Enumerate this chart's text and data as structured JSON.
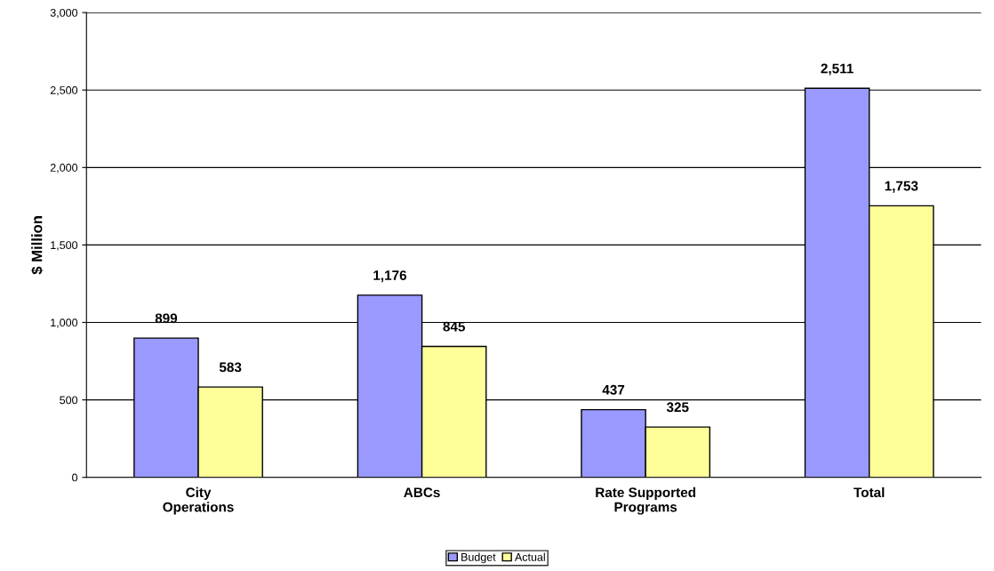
{
  "chart_data": {
    "type": "bar",
    "ylabel": "$ Million",
    "categories": [
      "City\nOperations",
      "ABCs",
      "Rate Supported\nPrograms",
      "Total"
    ],
    "series": [
      {
        "name": "Budget",
        "color": "#9999ff",
        "values": [
          899,
          1176,
          437,
          2511
        ],
        "value_labels": [
          "899",
          "1,176",
          "437",
          "2,511"
        ]
      },
      {
        "name": "Actual",
        "color": "#ffff99",
        "values": [
          583,
          845,
          325,
          1753
        ],
        "value_labels": [
          "583",
          "845",
          "325",
          "1,753"
        ]
      }
    ],
    "ylim": [
      0,
      3000
    ],
    "yticks": [
      0,
      500,
      {
        "value": 1000,
        "label": "1,000"
      },
      {
        "value": 1500,
        "label": "1,500"
      },
      {
        "value": 2000,
        "label": "2,000"
      },
      {
        "value": 2500,
        "label": "2,500"
      },
      {
        "value": 3000,
        "label": "3,000"
      }
    ],
    "grid": "y",
    "legend": "bottom"
  }
}
